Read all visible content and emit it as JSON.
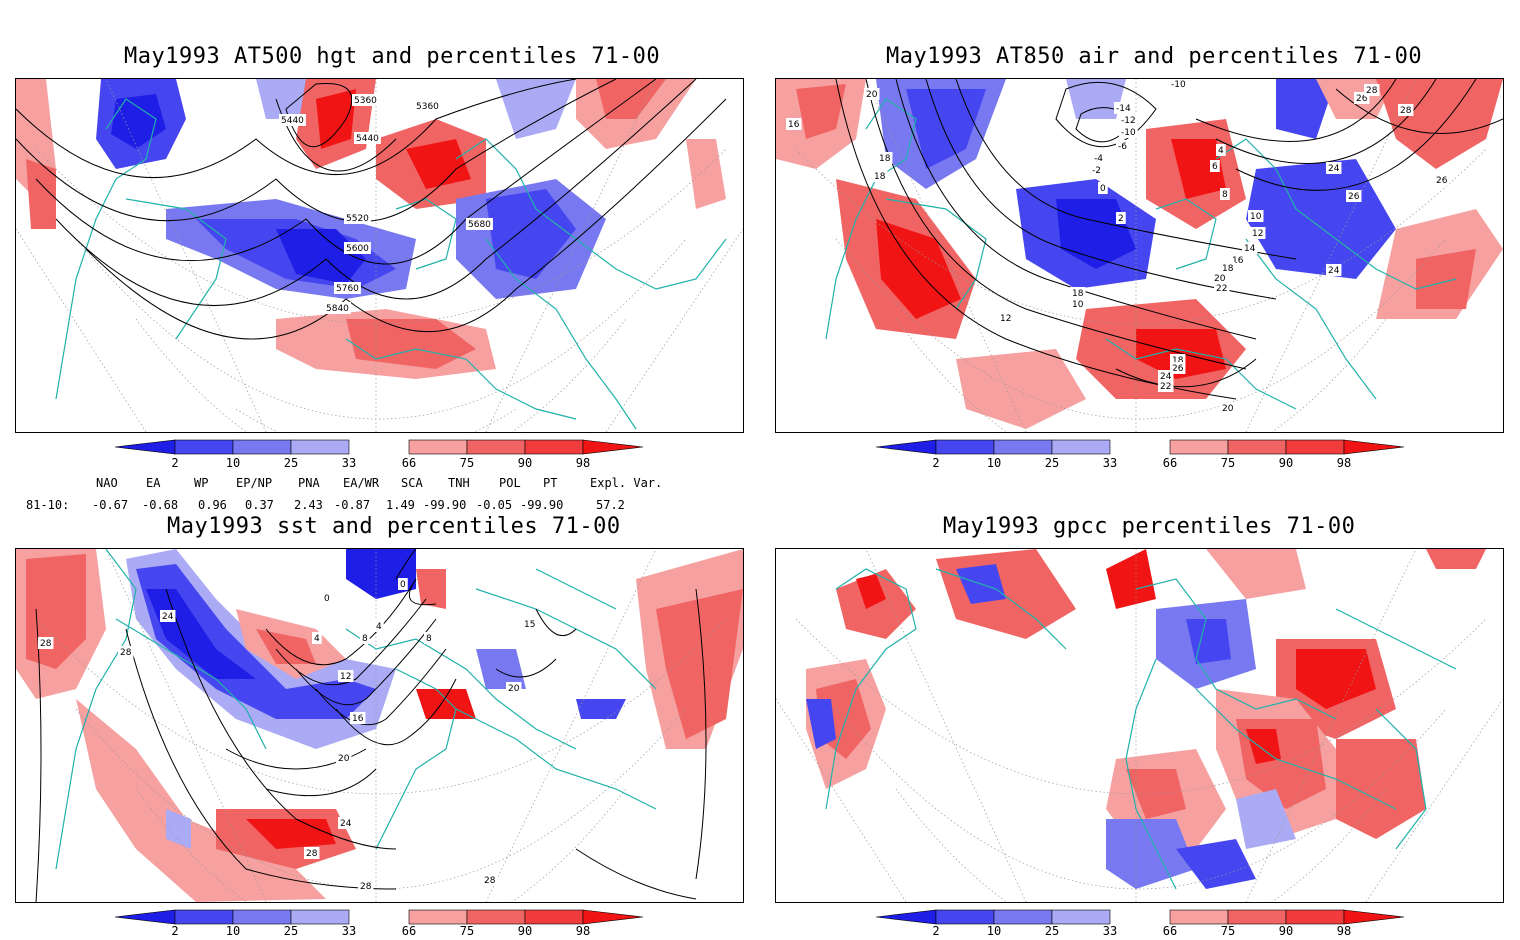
{
  "panels": [
    {
      "id": "p1",
      "title": "May1993 AT500 hgt and percentiles 71-00",
      "contour_labels": [
        "5440",
        "5360",
        "5360",
        "5440",
        "5520",
        "5600",
        "5680",
        "5760",
        "5840"
      ]
    },
    {
      "id": "p2",
      "title": "May1993 AT850 air and percentiles 71-00",
      "contour_labels": [
        "20",
        "16",
        "18",
        "18",
        "-10",
        "-14",
        "-12",
        "-10",
        "-6",
        "-4",
        "-2",
        "0",
        "2",
        "4",
        "6",
        "8",
        "10",
        "12",
        "14",
        "16",
        "18",
        "20",
        "22",
        "24",
        "26",
        "28",
        "28",
        "24",
        "26",
        "26",
        "18",
        "10",
        "12",
        "18",
        "26",
        "24",
        "22",
        "20",
        "18"
      ]
    },
    {
      "id": "p3",
      "title": "May1993 sst and percentiles 71-00",
      "contour_labels": [
        "28",
        "28",
        "24",
        "0",
        "4",
        "4",
        "8",
        "8",
        "12",
        "16",
        "20",
        "24",
        "28",
        "28",
        "28",
        "15",
        "20",
        "0"
      ]
    },
    {
      "id": "p4",
      "title": "May1993 gpcc percentiles 71-00",
      "contour_labels": []
    }
  ],
  "legend": {
    "labels": [
      "2",
      "10",
      "25",
      "33",
      "66",
      "75",
      "90",
      "98"
    ],
    "colors": {
      "deep_blue": "#1e1ee6",
      "blue": "#4646f0",
      "mid_blue": "#7878f0",
      "light_blue": "#aaaaf5",
      "light_red": "#f7a0a0",
      "red": "#f06464",
      "mid_red": "#f03c3c",
      "deep_red": "#f01414"
    }
  },
  "teleconnections": {
    "headers": [
      "NAO",
      "EA",
      "WP",
      "EP/NP",
      "PNA",
      "EA/WR",
      "SCA",
      "TNH",
      "POL",
      "PT",
      "Expl. Var."
    ],
    "row_label": "81-10:",
    "values": [
      "-0.67",
      "-0.68",
      "0.96",
      "0.37",
      "2.43",
      "-0.87",
      "1.49",
      "-99.90",
      "-0.05",
      "-99.90",
      "57.2"
    ]
  },
  "colors": {
    "coastline": "#20b2aa",
    "contour": "#000000",
    "grid": "#999999"
  }
}
